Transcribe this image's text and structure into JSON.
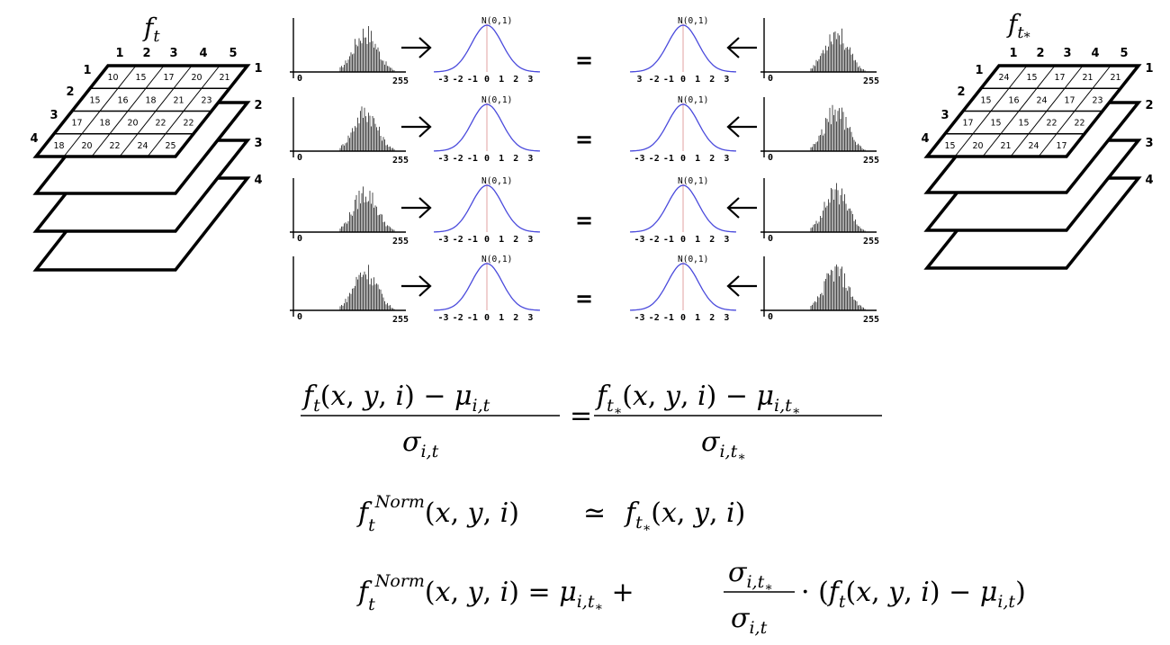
{
  "stacks": {
    "left": {
      "title_base": "f",
      "title_sub": "t",
      "columns": [
        "1",
        "2",
        "3",
        "4",
        "5"
      ],
      "rows": [
        "1",
        "2",
        "3",
        "4"
      ],
      "layers": [
        "1",
        "2",
        "3",
        "4"
      ],
      "grid": [
        [
          "10",
          "15",
          "17",
          "20",
          "21"
        ],
        [
          "15",
          "16",
          "18",
          "21",
          "23"
        ],
        [
          "17",
          "18",
          "20",
          "22",
          "22"
        ],
        [
          "18",
          "20",
          "22",
          "24",
          "25"
        ]
      ]
    },
    "right": {
      "title_base": "f",
      "title_sub": "t",
      "title_subsub": "*",
      "columns": [
        "1",
        "2",
        "3",
        "4",
        "5"
      ],
      "rows": [
        "1",
        "2",
        "3",
        "4"
      ],
      "layers": [
        "1",
        "2",
        "3",
        "4"
      ],
      "grid": [
        [
          "24",
          "15",
          "17",
          "21",
          "21"
        ],
        [
          "15",
          "16",
          "24",
          "17",
          "23"
        ],
        [
          "17",
          "15",
          "15",
          "22",
          "22"
        ],
        [
          "15",
          "20",
          "21",
          "24",
          "17"
        ]
      ]
    }
  },
  "histogram_axis": {
    "min_label": "0",
    "max_label": "255"
  },
  "normal_curve": {
    "label": "N(0,1)",
    "ticks_left": [
      "-3",
      "-2",
      "-1",
      "0",
      "1",
      "2",
      "3"
    ],
    "ticks_first_right": [
      "3",
      "-2",
      "-1",
      "0",
      "1",
      "2",
      "3"
    ],
    "ticks_right": [
      "-3",
      "-2",
      "-1",
      "0",
      "1",
      "2",
      "3"
    ]
  },
  "equals_sign": "=",
  "colors": {
    "curve": "#4a4adc",
    "center_line": "#e0a0a0",
    "ink": "#000000"
  },
  "formulas": {
    "eq1": {
      "lhs_num": "f_t(x, y, i) − μ_{i,t}",
      "lhs_den": "σ_{i,t}",
      "rhs_num": "f_{t*}(x, y, i) − μ_{i,t*}",
      "rhs_den": "σ_{i,t*}"
    },
    "eq2": {
      "text": "f_t^{Norm}(x, y, i) ≃ f_{t*}(x, y, i)"
    },
    "eq3": {
      "text": "f_t^{Norm}(x, y, i) = μ_{i,t*} + (σ_{i,t*} / σ_{i,t}) · (f_t(x, y, i) − μ_{i,t})"
    }
  }
}
